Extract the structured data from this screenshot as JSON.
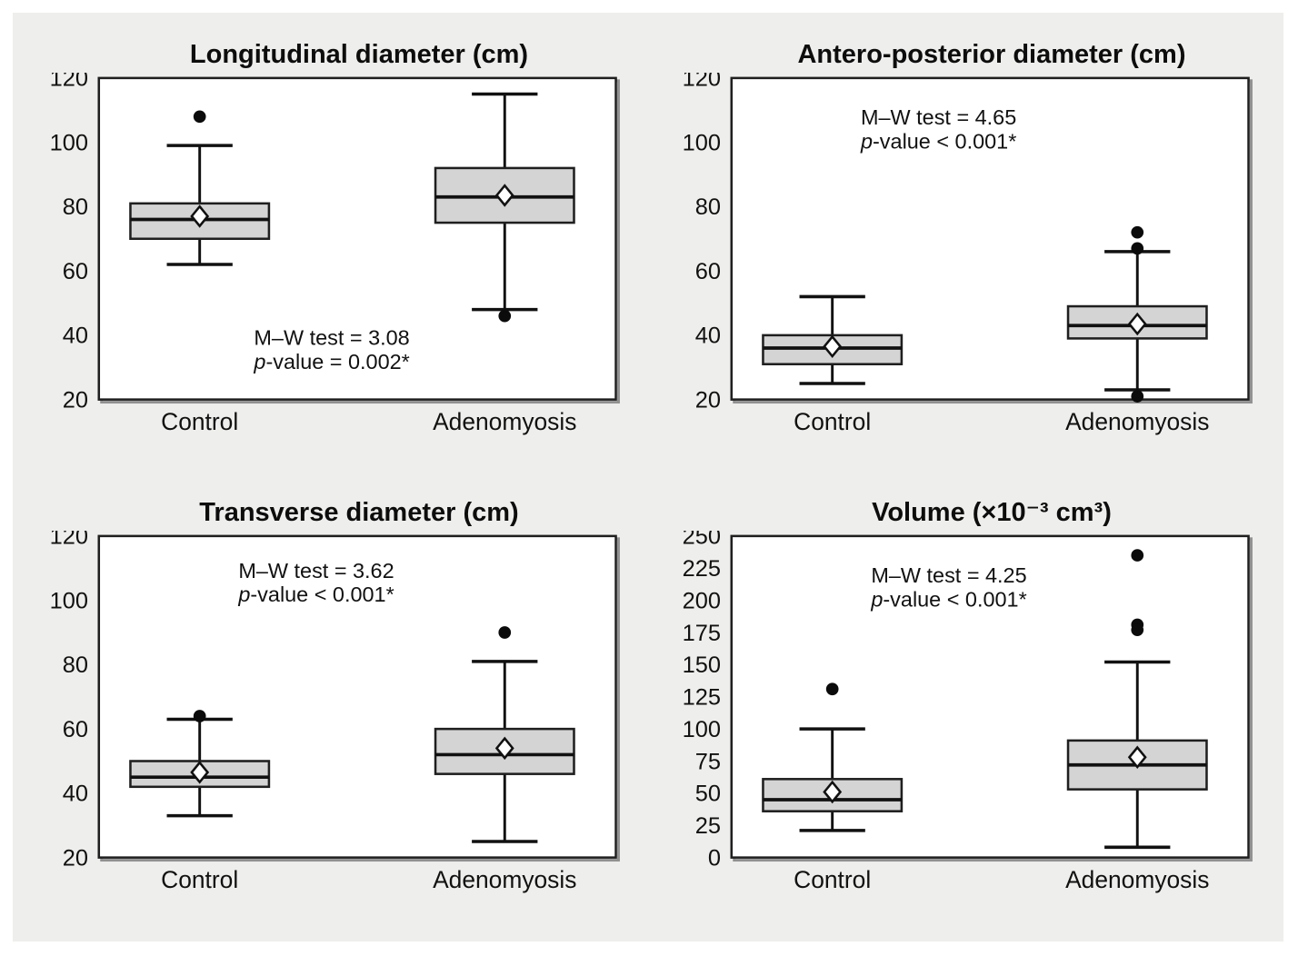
{
  "figure": {
    "background": "#eeeeec",
    "plot_background": "#ffffff",
    "box_fill": "#d4d4d4",
    "line_color": "#111111",
    "shadow_color": "#909090"
  },
  "chart_data": [
    {
      "type": "boxplot",
      "title": "Longitudinal diameter (cm)",
      "categories": [
        "Control",
        "Adenomyosis"
      ],
      "xlabel": "",
      "ylabel": "",
      "ylim": [
        20,
        120
      ],
      "ystep": 20,
      "grid": false,
      "annotation": [
        "M–W test = 3.08",
        "p-value = 0.002*"
      ],
      "annotation_pos": {
        "x": 0.3,
        "y": 0.83
      },
      "groups": [
        {
          "name": "Control",
          "whisker_low": 62,
          "q1": 70,
          "median": 76,
          "mean": 77,
          "q3": 81,
          "whisker_high": 99,
          "outliers": [
            108
          ]
        },
        {
          "name": "Adenomyosis",
          "whisker_low": 48,
          "q1": 75,
          "median": 83,
          "mean": 83.5,
          "q3": 92,
          "whisker_high": 115,
          "outliers": [
            46
          ]
        }
      ]
    },
    {
      "type": "boxplot",
      "title": "Antero-posterior diameter (cm)",
      "categories": [
        "Control",
        "Adenomyosis"
      ],
      "xlabel": "",
      "ylabel": "",
      "ylim": [
        20,
        120
      ],
      "ystep": 20,
      "grid": false,
      "annotation": [
        "M–W test = 4.65",
        "p-value < 0.001*"
      ],
      "annotation_pos": {
        "x": 0.25,
        "y": 0.145
      },
      "groups": [
        {
          "name": "Control",
          "whisker_low": 25,
          "q1": 31,
          "median": 36,
          "mean": 36.5,
          "q3": 40,
          "whisker_high": 52,
          "outliers": []
        },
        {
          "name": "Adenomyosis",
          "whisker_low": 23,
          "q1": 39,
          "median": 43,
          "mean": 43.5,
          "q3": 49,
          "whisker_high": 66,
          "outliers": [
            72,
            67,
            21
          ]
        }
      ]
    },
    {
      "type": "boxplot",
      "title": "Transverse diameter (cm)",
      "categories": [
        "Control",
        "Adenomyosis"
      ],
      "xlabel": "",
      "ylabel": "",
      "ylim": [
        20,
        120
      ],
      "ystep": 20,
      "grid": false,
      "annotation": [
        "M–W test = 3.62",
        "p-value < 0.001*"
      ],
      "annotation_pos": {
        "x": 0.27,
        "y": 0.13
      },
      "groups": [
        {
          "name": "Control",
          "whisker_low": 33,
          "q1": 42,
          "median": 45,
          "mean": 46.5,
          "q3": 50,
          "whisker_high": 63,
          "outliers": [
            64
          ]
        },
        {
          "name": "Adenomyosis",
          "whisker_low": 25,
          "q1": 46,
          "median": 52,
          "mean": 54,
          "q3": 60,
          "whisker_high": 81,
          "outliers": [
            90
          ]
        }
      ]
    },
    {
      "type": "boxplot",
      "title": "Volume (×10⁻³ cm³)",
      "categories": [
        "Control",
        "Adenomyosis"
      ],
      "xlabel": "",
      "ylabel": "",
      "ylim": [
        0,
        250
      ],
      "ystep": 25,
      "grid": false,
      "annotation": [
        "M–W test = 4.25",
        "p-value < 0.001*"
      ],
      "annotation_pos": {
        "x": 0.27,
        "y": 0.145
      },
      "groups": [
        {
          "name": "Control",
          "whisker_low": 21,
          "q1": 36,
          "median": 45,
          "mean": 51,
          "q3": 61,
          "whisker_high": 100,
          "outliers": [
            131
          ]
        },
        {
          "name": "Adenomyosis",
          "whisker_low": 8,
          "q1": 53,
          "median": 72,
          "mean": 78,
          "q3": 91,
          "whisker_high": 152,
          "outliers": [
            235,
            181,
            177
          ]
        }
      ]
    }
  ]
}
